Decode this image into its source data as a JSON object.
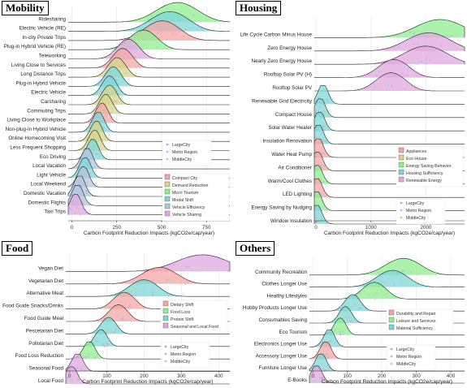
{
  "chart_data": [
    {
      "type": "ridgeline",
      "title": "Mobility",
      "xlabel": "Carbon Footprint Reduction Impacts (kgCO2e/cap/year)",
      "xlim": [
        -20,
        880
      ],
      "xticks": [
        0,
        250,
        500,
        750
      ],
      "categories": [
        "Ridesharing",
        "Electric Vehicle (RE)",
        "In-city Private Trips",
        "Plug-in Hybrid Vehicle (RE)",
        "Teleworking",
        "Living Close to Services",
        "Long Distance Trips",
        "Plug-in Hybrid Vehicle",
        "Electric Vehicle",
        "Carsharing",
        "Commuting Trips",
        "Living Close to Workplace",
        "Non-plug-in Hybrid Vehicle",
        "Online Homecoming Visit",
        "Less Frequent Shopping",
        "Eco Driving",
        "Local Vacation",
        "Light Vehicle",
        "Local Weekend",
        "Domestic Vacation",
        "Domestic Flights",
        "Taxi Trips"
      ],
      "peaks": [
        560,
        520,
        480,
        380,
        300,
        270,
        240,
        220,
        200,
        200,
        180,
        160,
        140,
        130,
        120,
        110,
        80,
        70,
        60,
        40,
        30,
        20
      ],
      "colors": [
        "#90ee90",
        "#7fd5d5",
        "#f4a6a6",
        "#90ee90",
        "#e0a8e0",
        "#f4a6a6",
        "#d4d48c",
        "#7fd5d5",
        "#7fd5d5",
        "#d4d48c",
        "#d4d48c",
        "#f4a6a6",
        "#7fd5d5",
        "#d4d48c",
        "#d4d48c",
        "#7fd5d5",
        "#b0c4de",
        "#7fd5d5",
        "#b0c4de",
        "#b0c4de",
        "#b0c4de",
        "#e0a8e0"
      ],
      "legend_city": {
        "items": [
          "LargeCity",
          "Metro Region",
          "MiddleCity"
        ]
      },
      "legend_type": {
        "items": [
          {
            "label": "Compact City",
            "color": "#f4a6a6"
          },
          {
            "label": "Demand Reduction",
            "color": "#d4d48c"
          },
          {
            "label": "Micro Tourism",
            "color": "#90ee90"
          },
          {
            "label": "Modal Shift",
            "color": "#7fd5d5"
          },
          {
            "label": "Vehicle Efficiency",
            "color": "#b0c4de"
          },
          {
            "label": "Vehicle Sharing",
            "color": "#e0a8e0"
          }
        ]
      }
    },
    {
      "type": "ridgeline",
      "title": "Housing",
      "xlabel": "Carbon Footprint Reduction Impacts (kgCO2e/cap/year)",
      "xlim": [
        -30,
        2700
      ],
      "xticks": [
        0,
        1000,
        2000
      ],
      "categories": [
        "Life Cycle Carbon Minus House",
        "Zero Energy House",
        "Nearly Zero Energy House",
        "Rooftop Solar PV (H)",
        "Rooftop Solar PV",
        "Renewable Grid Electricity",
        "Compact House",
        "Solar Water Heater",
        "Insulation Renovation",
        "Water Heat Pump",
        "Air Conditioner",
        "Warm/Cool Clothes",
        "LED Lighting",
        "Energy Saving by Nudging",
        "Window Insulation"
      ],
      "peaks": [
        2150,
        1950,
        1900,
        1350,
        1300,
        120,
        70,
        60,
        40,
        35,
        25,
        20,
        15,
        10,
        8
      ],
      "colors": [
        "#90ee90",
        "#e0a8e0",
        "#e0a8e0",
        "#e0a8e0",
        "#e0a8e0",
        "#7fd5d5",
        "#7fd5d5",
        "#7fd5d5",
        "#7fd5d5",
        "#f4a6a6",
        "#f4a6a6",
        "#90ee90",
        "#f4a6a6",
        "#90ee90",
        "#7fd5d5"
      ],
      "legend_type": {
        "items": [
          {
            "label": "Appliances",
            "color": "#f4a6a6"
          },
          {
            "label": "Eco House",
            "color": "#d4d48c"
          },
          {
            "label": "Energy Saving Behavior",
            "color": "#90ee90"
          },
          {
            "label": "Housing Sufficiency",
            "color": "#7fd5d5"
          },
          {
            "label": "Renewable Energy",
            "color": "#e0a8e0"
          }
        ]
      },
      "legend_city": {
        "items": [
          "LargeCity",
          "Metro Region",
          "MiddleCity"
        ]
      }
    },
    {
      "type": "ridgeline",
      "title": "Food",
      "xlabel": "Carbon Footprint Reduction Impacts (kgCO2e/cap/year)",
      "xlim": [
        -10,
        430
      ],
      "xticks": [
        0,
        100,
        200,
        300,
        400
      ],
      "categories": [
        "Vegan Diet",
        "Vegetarian Diet",
        "Alternative Meat",
        "Food Guide Snacks/Drinks",
        "Food Guide Meal",
        "Pescetarian Diet",
        "Pollotarian Diet",
        "Food Loss Reduction",
        "Seasonal Food",
        "Local Food"
      ],
      "peaks": [
        340,
        230,
        190,
        140,
        125,
        100,
        80,
        50,
        20,
        5
      ],
      "colors": [
        "#e0a8e0",
        "#f4a6a6",
        "#7fd5d5",
        "#f4a6a6",
        "#f4a6a6",
        "#7fd5d5",
        "#7fd5d5",
        "#90ee90",
        "#e0a8e0",
        "#e0a8e0"
      ],
      "legend_type": {
        "items": [
          {
            "label": "Dietary Shift",
            "color": "#f4a6a6"
          },
          {
            "label": "Food Loss",
            "color": "#90ee90"
          },
          {
            "label": "Protein Shift",
            "color": "#7fd5d5"
          },
          {
            "label": "Seasonal and Local Food",
            "color": "#e0a8e0"
          }
        ]
      },
      "legend_city": {
        "items": [
          "LargeCity",
          "Metro Region",
          "MiddleCity"
        ]
      }
    },
    {
      "type": "ridgeline",
      "title": "Others",
      "xlabel": "Carbon Footprint Reduction Impacts (kgCO2e/cap/year)",
      "xlim": [
        -10,
        440
      ],
      "xticks": [
        0,
        100,
        200,
        300,
        400
      ],
      "categories": [
        "Community Recreation",
        "Clothes Longer Use",
        "Healthy Lifestyles",
        "Hobby Products Longer Use",
        "Consumables Saving",
        "Eco Tourism",
        "Electronics Longer Use",
        "Accessory Longer Use",
        "Furniture Longer Use",
        "E-Books"
      ],
      "peaks": [
        250,
        220,
        170,
        110,
        90,
        75,
        45,
        35,
        22,
        10
      ],
      "colors": [
        "#90ee90",
        "#7fd5d5",
        "#90ee90",
        "#7fd5d5",
        "#7fd5d5",
        "#90ee90",
        "#7fd5d5",
        "#f4a6a6",
        "#7fd5d5",
        "#e0a8e0"
      ],
      "legend_type": {
        "items": [
          {
            "label": "Durability and Repair",
            "color": "#f4a6a6"
          },
          {
            "label": "Leisure and Services",
            "color": "#90ee90"
          },
          {
            "label": "Material Sufficiency",
            "color": "#7fd5d5"
          }
        ]
      },
      "legend_city": {
        "items": [
          "LargeCity",
          "Metro Region",
          "MiddleCity"
        ]
      }
    }
  ]
}
